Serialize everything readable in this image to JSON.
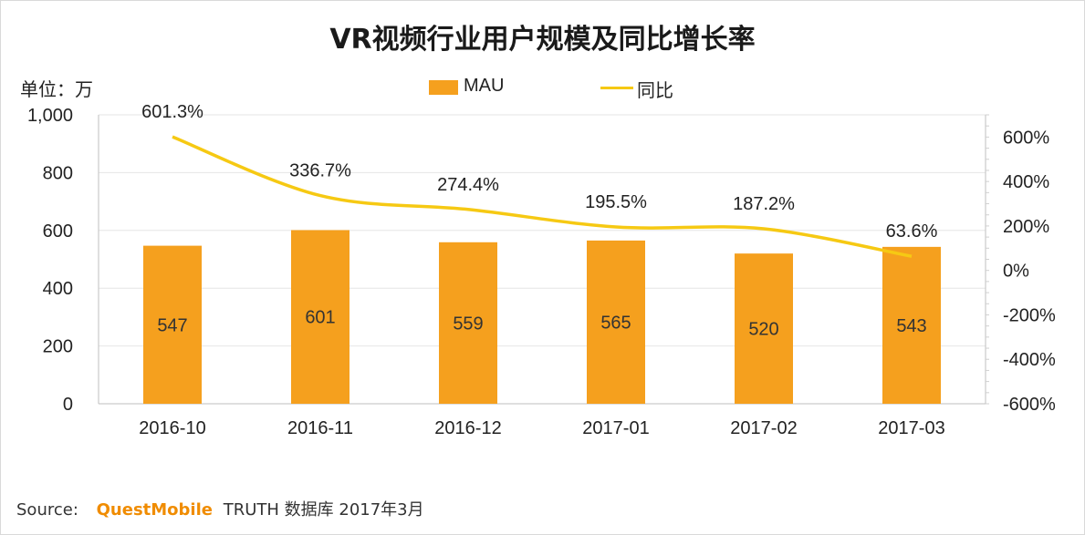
{
  "page": {
    "title": "VR视频行业用户规模及同比增长率",
    "unit_label": "单位：万",
    "footer": {
      "source_label": "Source:",
      "brand": "QuestMobile",
      "database": "TRUTH 数据库 2017年3月"
    }
  },
  "legend": {
    "bar_label": "MAU",
    "line_label": "同比"
  },
  "colors": {
    "bar": "#f5a01e",
    "line": "#f6c913",
    "grid": "#e6e6e6",
    "axis_text": "#222222"
  },
  "chart_data": {
    "type": "bar",
    "title": "VR视频行业用户规模及同比增长率",
    "categories": [
      "2016-10",
      "2016-11",
      "2016-12",
      "2017-01",
      "2017-02",
      "2017-03"
    ],
    "series": [
      {
        "name": "MAU",
        "type": "bar",
        "axis": "left",
        "values": [
          547,
          601,
          559,
          565,
          520,
          543
        ],
        "labels": [
          "547",
          "601",
          "559",
          "565",
          "520",
          "543"
        ]
      },
      {
        "name": "同比",
        "type": "line",
        "axis": "right",
        "values": [
          601.3,
          336.7,
          274.4,
          195.5,
          187.2,
          63.6
        ],
        "labels": [
          "601.3%",
          "336.7%",
          "274.4%",
          "195.5%",
          "187.2%",
          "63.6%"
        ]
      }
    ],
    "y_left": {
      "label": "单位：万",
      "range": [
        0,
        1000
      ],
      "ticks": [
        0,
        200,
        400,
        600,
        800,
        1000
      ],
      "tick_labels": [
        "0",
        "200",
        "400",
        "600",
        "800",
        "1,000"
      ]
    },
    "y_right": {
      "range": [
        -600,
        700
      ],
      "ticks": [
        -600,
        -400,
        -200,
        0,
        200,
        400,
        600
      ],
      "tick_labels": [
        "-600%",
        "-400%",
        "-200%",
        "0%",
        "200%",
        "400%",
        "600%"
      ]
    },
    "grid": true,
    "legend": "top-center"
  }
}
